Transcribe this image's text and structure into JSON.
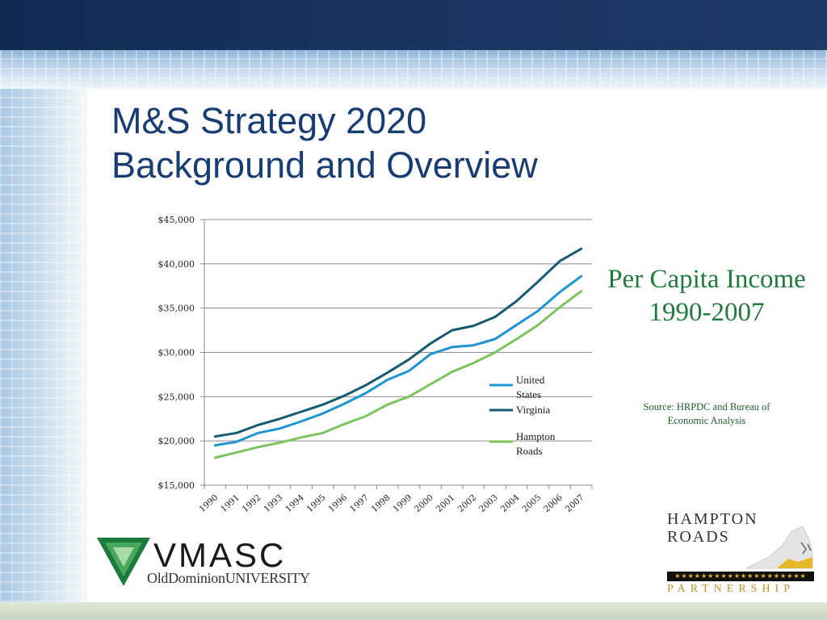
{
  "slide": {
    "title_lines": [
      "M&S Strategy 2020",
      "Background and Overview"
    ],
    "side_title": "Per Capita Income 1990-2007",
    "source": "Source: HRPDC and Bureau of Economic Analysis"
  },
  "logos": {
    "vmasc": {
      "word": "VMASC",
      "university": "OldDominionUNIVERSITY"
    },
    "hampton_roads": {
      "line1": "HAMPTON",
      "line2": "ROADS",
      "stars": "★★★★★★★★★★★★★★★★★★★★",
      "partnership": "PARTNERSHIP"
    }
  },
  "colors": {
    "united_states": "#1e95d1",
    "virginia": "#165a72",
    "hampton_roads": "#7cc45e",
    "title": "#173d73",
    "side_title": "#1f7a3e"
  },
  "chart_data": {
    "type": "line",
    "title": "",
    "xlabel": "",
    "ylabel": "",
    "ylim": [
      15000,
      45000
    ],
    "y_ticks": [
      15000,
      20000,
      25000,
      30000,
      35000,
      40000,
      45000
    ],
    "y_tick_labels": [
      "$15,000",
      "$20,000",
      "$25,000",
      "$30,000",
      "$35,000",
      "$40,000",
      "$45,000"
    ],
    "grid": true,
    "legend_position": "right-inside",
    "categories": [
      "1990",
      "1991",
      "1992",
      "1993",
      "1994",
      "1995",
      "1996",
      "1997",
      "1998",
      "1999",
      "2000",
      "2001",
      "2002",
      "2003",
      "2004",
      "2005",
      "2006",
      "2007"
    ],
    "series": [
      {
        "name": "United States",
        "legend_lines": [
          "United",
          "States"
        ],
        "color": "#1e95d1",
        "values": [
          19500,
          19900,
          20900,
          21400,
          22200,
          23100,
          24200,
          25400,
          26900,
          27900,
          29800,
          30600,
          30800,
          31500,
          33100,
          34700,
          36800,
          38600
        ]
      },
      {
        "name": "Virginia",
        "legend_lines": [
          "Virginia"
        ],
        "color": "#165a72",
        "values": [
          20500,
          20900,
          21800,
          22500,
          23300,
          24100,
          25100,
          26300,
          27700,
          29200,
          31000,
          32500,
          33000,
          34000,
          35800,
          38000,
          40300,
          41700
        ]
      },
      {
        "name": "Hampton Roads",
        "legend_lines": [
          "Hampton",
          "Roads"
        ],
        "color": "#7cc45e",
        "values": [
          18100,
          18700,
          19300,
          19800,
          20400,
          20900,
          21900,
          22800,
          24100,
          25000,
          26400,
          27800,
          28800,
          30000,
          31500,
          33100,
          35100,
          36900
        ]
      }
    ]
  }
}
